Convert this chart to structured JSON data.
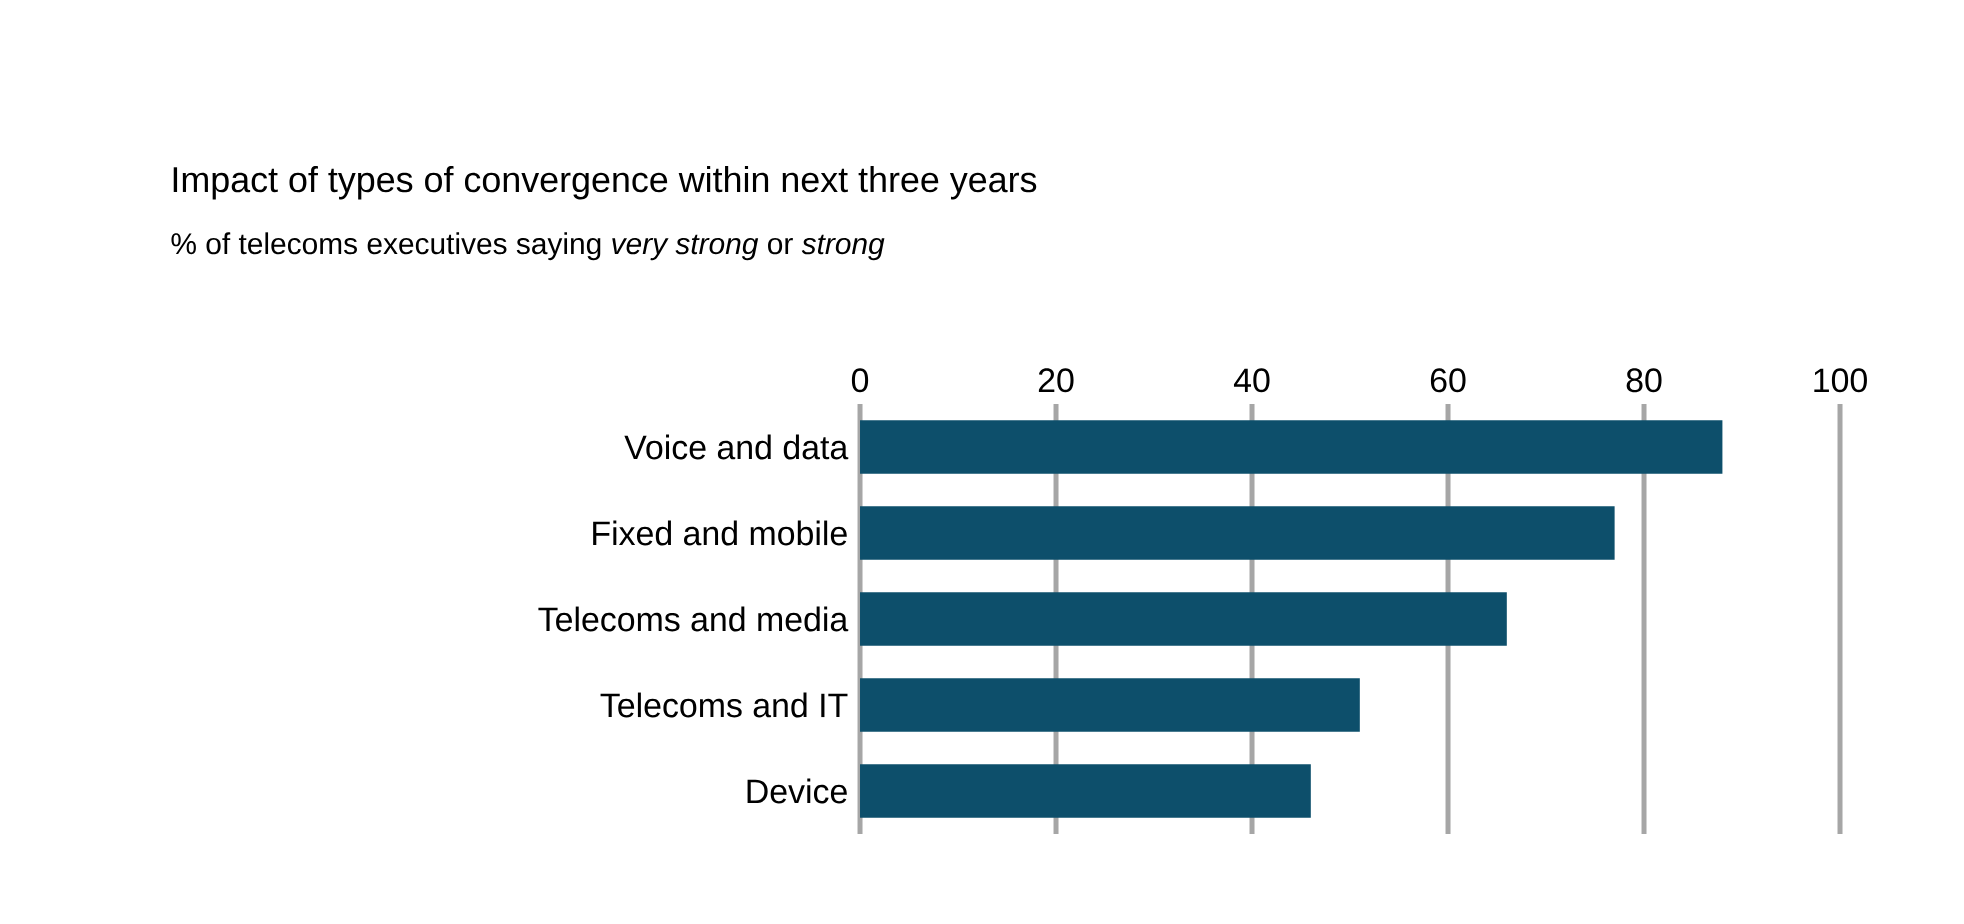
{
  "chart_data": {
    "type": "bar",
    "orientation": "horizontal",
    "title": "Impact of types of convergence within next three years",
    "subtitle": "% of telecoms executives saying *very strong* or *strong*",
    "categories": [
      "Voice and data",
      "Fixed and mobile",
      "Telecoms and media",
      "Telecoms and IT",
      "Device"
    ],
    "values": [
      88,
      77,
      66,
      51,
      46
    ],
    "color": "#0d4f6b",
    "xlim": [
      0,
      100
    ],
    "xticks": [
      0,
      20,
      40,
      60,
      80,
      100
    ],
    "grid": "x"
  }
}
